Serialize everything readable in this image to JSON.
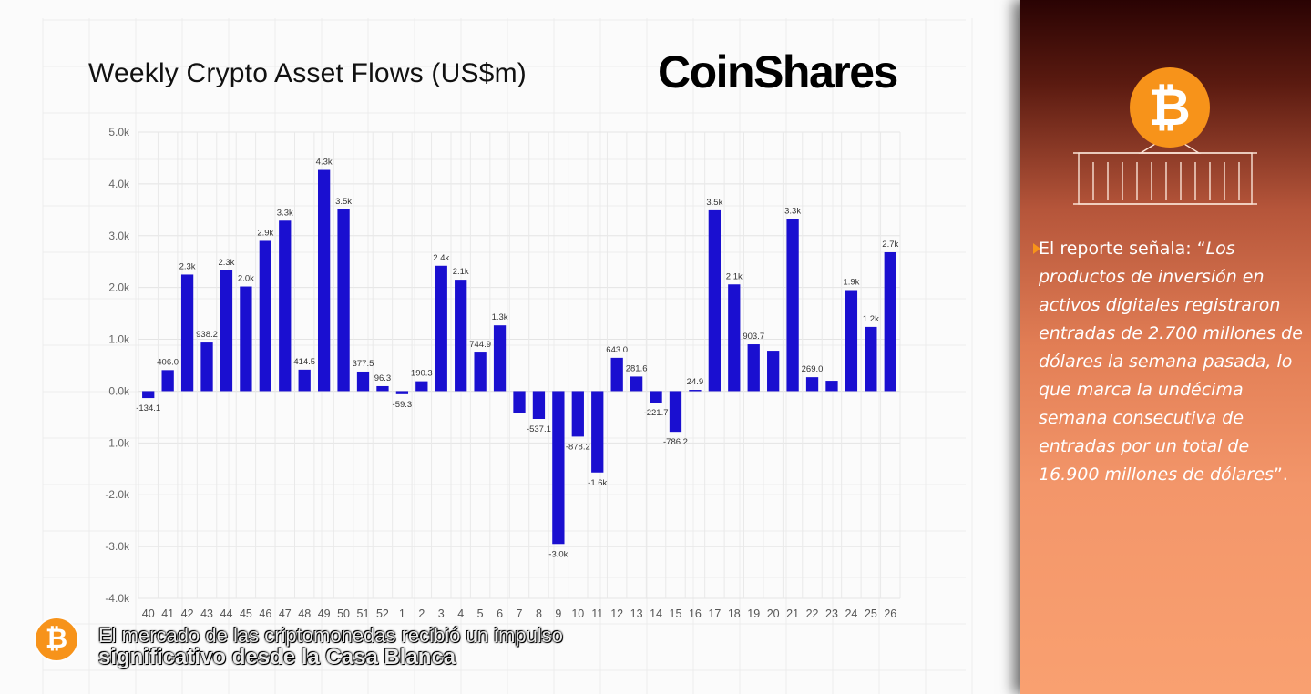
{
  "chart_data": {
    "type": "bar",
    "title": "Weekly Crypto Asset Flows (US$m)",
    "xlabel": "",
    "ylabel": "",
    "ylim": [
      -4000,
      5000
    ],
    "yticks": [
      {
        "value": 5000,
        "label": "5.0k"
      },
      {
        "value": 4000,
        "label": "4.0k"
      },
      {
        "value": 3000,
        "label": "3.0k"
      },
      {
        "value": 2000,
        "label": "2.0k"
      },
      {
        "value": 1000,
        "label": "1.0k"
      },
      {
        "value": 0,
        "label": "0.0k"
      },
      {
        "value": -1000,
        "label": "-1.0k"
      },
      {
        "value": -2000,
        "label": "-2.0k"
      },
      {
        "value": -3000,
        "label": "-3.0k"
      },
      {
        "value": -4000,
        "label": "-4.0k"
      }
    ],
    "grid": true,
    "bar_color": "#1a0fd0",
    "categories": [
      "40",
      "41",
      "42",
      "43",
      "44",
      "45",
      "46",
      "47",
      "48",
      "49",
      "50",
      "51",
      "52",
      "1",
      "2",
      "3",
      "4",
      "5",
      "6",
      "7",
      "8",
      "9",
      "10",
      "11",
      "12",
      "13",
      "14",
      "15",
      "16",
      "17",
      "18",
      "19",
      "20",
      "21",
      "22",
      "23",
      "24",
      "25",
      "26"
    ],
    "values": [
      -134.1,
      406.0,
      2250,
      938.2,
      2330,
      2020,
      2900,
      3290,
      414.5,
      4270,
      3510,
      377.5,
      96.3,
      -59.3,
      190.3,
      2420,
      2150,
      744.9,
      1270,
      -420,
      -537.1,
      -2950,
      -878.2,
      -1570,
      643.0,
      281.6,
      -221.7,
      -786.2,
      24.9,
      3490,
      2060,
      903.7,
      780,
      3320,
      269.0,
      200,
      1950,
      1240,
      2680
    ],
    "data_labels": [
      "-134.1",
      "406.0",
      "2.3k",
      "938.2",
      "2.3k",
      "2.0k",
      "2.9k",
      "3.3k",
      "414.5",
      "4.3k",
      "3.5k",
      "377.5",
      "96.3",
      "-59.3",
      "190.3",
      "2.4k",
      "2.1k",
      "744.9",
      "1.3k",
      "",
      "-537.1",
      "-3.0k",
      "-878.2",
      "-1.6k",
      "643.0",
      "281.6",
      "-221.7",
      "-786.2",
      "24.9",
      "3.5k",
      "2.1k",
      "903.7",
      "",
      "3.3k",
      "269.0",
      "",
      "1.9k",
      "1.2k",
      "2.7k"
    ]
  },
  "header": {
    "title": "Weekly Crypto Asset Flows (US$m)",
    "brand": "CoinShares"
  },
  "caption": {
    "line1": "El mercado de las criptomonedas recibió un impulso",
    "line2": "significativo desde la Casa Blanca",
    "badge": "₿"
  },
  "sidebar": {
    "emblem": "₿",
    "text_lead": "El reporte señala: “",
    "quote": "Los productos de inversión en activos digitales registraron entradas de 2.700 millones de dólares la semana pasada, lo que marca la undécima semana consecutiva de entradas por un total de 16.900 millones de dólares",
    "text_tail": "”.",
    "colors": {
      "accent": "#f7931a"
    }
  }
}
